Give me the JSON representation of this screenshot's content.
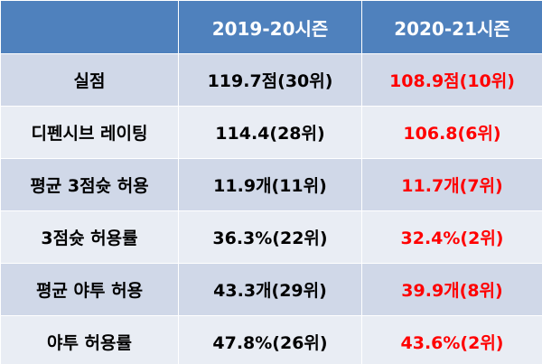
{
  "table": {
    "headers": [
      "",
      "2019-20시즌",
      "2020-21시즌"
    ],
    "rows": [
      {
        "label": "실점",
        "prev": "119.7점(30위)",
        "curr": "108.9점(10위)"
      },
      {
        "label": "디펜시브 레이팅",
        "prev": "114.4(28위)",
        "curr": "106.8(6위)"
      },
      {
        "label": "평균 3점슛 허용",
        "prev": "11.9개(11위)",
        "curr": "11.7개(7위)"
      },
      {
        "label": "3점슛 허용률",
        "prev": "36.3%(22위)",
        "curr": "32.4%(2위)"
      },
      {
        "label": "평균 야투 허용",
        "prev": "43.3개(29위)",
        "curr": "39.9개(8위)"
      },
      {
        "label": "야투 허용률",
        "prev": "47.8%(26위)",
        "curr": "43.6%(2위)"
      }
    ]
  },
  "colors": {
    "header_bg": "#4f81bd",
    "row_odd_bg": "#d0d8e8",
    "row_even_bg": "#e9edf4",
    "highlight_text": "#ff0000"
  }
}
